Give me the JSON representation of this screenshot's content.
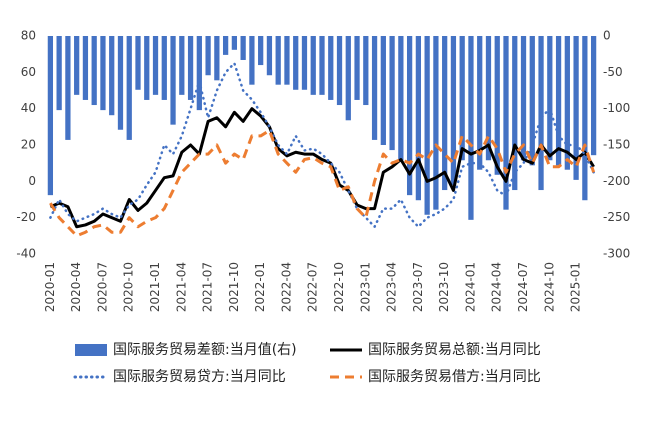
{
  "chart_data": {
    "type": "combo",
    "categories": [
      "2020-01",
      null,
      null,
      "2020-04",
      null,
      null,
      "2020-07",
      null,
      null,
      "2020-10",
      null,
      null,
      "2021-01",
      null,
      null,
      "2021-04",
      null,
      null,
      "2021-07",
      null,
      null,
      "2021-10",
      null,
      null,
      "2022-01",
      null,
      null,
      "2022-04",
      null,
      null,
      "2022-07",
      null,
      null,
      "2022-10",
      null,
      null,
      "2023-01",
      null,
      null,
      "2023-04",
      null,
      null,
      "2023-07",
      null,
      null,
      "2023-10",
      null,
      null,
      "2024-01",
      null,
      null,
      "2024-04",
      null,
      null,
      "2024-07",
      null,
      null,
      "2024-10",
      null,
      null,
      "2025-01",
      null,
      null
    ],
    "ylim": [
      -40,
      80
    ],
    "yticks": [
      -40,
      -20,
      0,
      20,
      40,
      60,
      80
    ],
    "y2lim": [
      -300,
      0
    ],
    "y2ticks": [
      -300,
      -250,
      -200,
      -150,
      -100,
      -50,
      0
    ],
    "legend": "bottom",
    "series": [
      {
        "name": "国际服务贸易差额:当月值(右)",
        "color": "#4472c4",
        "style": "bar",
        "axis": "y2",
        "values": [
          -219,
          -102,
          -143,
          -81,
          -88,
          -95,
          -102,
          -109,
          -129,
          -143,
          -74,
          -88,
          -81,
          -88,
          -122,
          -81,
          -88,
          -102,
          -54,
          -61,
          -26,
          -19,
          -33,
          -67,
          -40,
          -54,
          -67,
          -67,
          -74,
          -74,
          -81,
          -81,
          -88,
          -95,
          -116,
          -88,
          -95,
          -143,
          -150,
          -157,
          -171,
          -219,
          -226,
          -246,
          -239,
          -212,
          -205,
          -171,
          -253,
          -184,
          -171,
          -191,
          -239,
          -212,
          -171,
          -178,
          -212,
          -171,
          -178,
          -184,
          -198,
          -226,
          -164
        ]
      },
      {
        "name": "国际服务贸易总额:当月同比",
        "color": "#000000",
        "style": "solid",
        "values": [
          -14,
          -12,
          -14,
          -25,
          -24,
          -22,
          -18,
          -20,
          -22,
          -10,
          -16,
          -12,
          -5,
          2,
          3,
          16,
          20,
          15,
          33,
          35,
          30,
          38,
          33,
          40,
          36,
          30,
          18,
          14,
          16,
          15,
          15,
          12,
          10,
          -2,
          -5,
          -13,
          -15,
          -15,
          5,
          8,
          12,
          4,
          12,
          0,
          2,
          5,
          -5,
          18,
          15,
          17,
          20,
          8,
          0,
          20,
          12,
          10,
          20,
          14,
          18,
          16,
          12,
          16,
          8
        ]
      },
      {
        "name": "国际服务贸易贷方:当月同比",
        "color": "#4472c4",
        "style": "dotted",
        "values": [
          -20,
          -10,
          -18,
          -22,
          -20,
          -18,
          -15,
          -18,
          -20,
          -13,
          -10,
          -2,
          5,
          20,
          15,
          25,
          40,
          55,
          35,
          50,
          60,
          65,
          50,
          45,
          38,
          30,
          20,
          15,
          25,
          17,
          18,
          15,
          10,
          5,
          -5,
          -15,
          -20,
          -25,
          -15,
          -15,
          -10,
          -20,
          -25,
          -20,
          -18,
          -15,
          -10,
          8,
          10,
          10,
          5,
          -5,
          -8,
          5,
          10,
          20,
          35,
          40,
          25,
          20,
          20,
          15,
          5
        ]
      },
      {
        "name": "国际服务贸易借方:当月同比",
        "color": "#ed7d31",
        "style": "dashed",
        "values": [
          -12,
          -20,
          -25,
          -30,
          -28,
          -25,
          -24,
          -28,
          -28,
          -20,
          -25,
          -22,
          -20,
          -15,
          -5,
          5,
          10,
          15,
          15,
          20,
          10,
          15,
          12,
          25,
          25,
          28,
          15,
          10,
          5,
          12,
          13,
          10,
          8,
          -5,
          -3,
          -15,
          -20,
          0,
          15,
          10,
          12,
          10,
          15,
          12,
          20,
          15,
          10,
          25,
          20,
          15,
          25,
          18,
          5,
          15,
          20,
          10,
          20,
          8,
          8,
          12,
          8,
          20,
          5
        ]
      }
    ]
  }
}
